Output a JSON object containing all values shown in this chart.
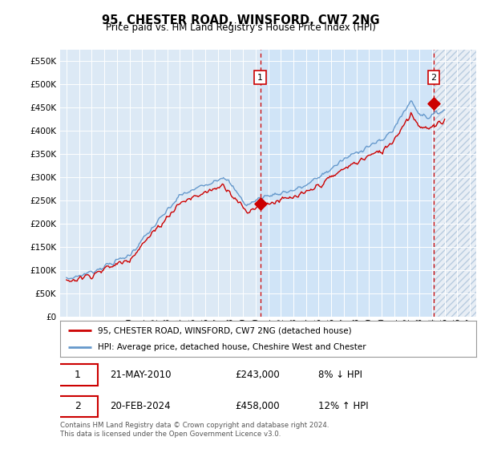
{
  "title": "95, CHESTER ROAD, WINSFORD, CW7 2NG",
  "subtitle": "Price paid vs. HM Land Registry's House Price Index (HPI)",
  "legend_line1": "95, CHESTER ROAD, WINSFORD, CW7 2NG (detached house)",
  "legend_line2": "HPI: Average price, detached house, Cheshire West and Chester",
  "annotation1_label": "1",
  "annotation1_date": "21-MAY-2010",
  "annotation1_price": "£243,000",
  "annotation1_hpi": "8% ↓ HPI",
  "annotation1_year": 2010.38,
  "annotation1_value": 243000,
  "annotation2_label": "2",
  "annotation2_date": "20-FEB-2024",
  "annotation2_price": "£458,000",
  "annotation2_hpi": "12% ↑ HPI",
  "annotation2_year": 2024.13,
  "annotation2_value": 458000,
  "hpi_color": "#6699cc",
  "price_color": "#cc0000",
  "background_color": "#dce9f5",
  "highlight_color": "#d0e4f7",
  "hatch_color": "#c8d8ec",
  "grid_color": "#ffffff",
  "ylim": [
    0,
    575000
  ],
  "xlim_start": 1994.5,
  "xlim_end": 2027.5,
  "footer_text": "Contains HM Land Registry data © Crown copyright and database right 2024.\nThis data is licensed under the Open Government Licence v3.0."
}
